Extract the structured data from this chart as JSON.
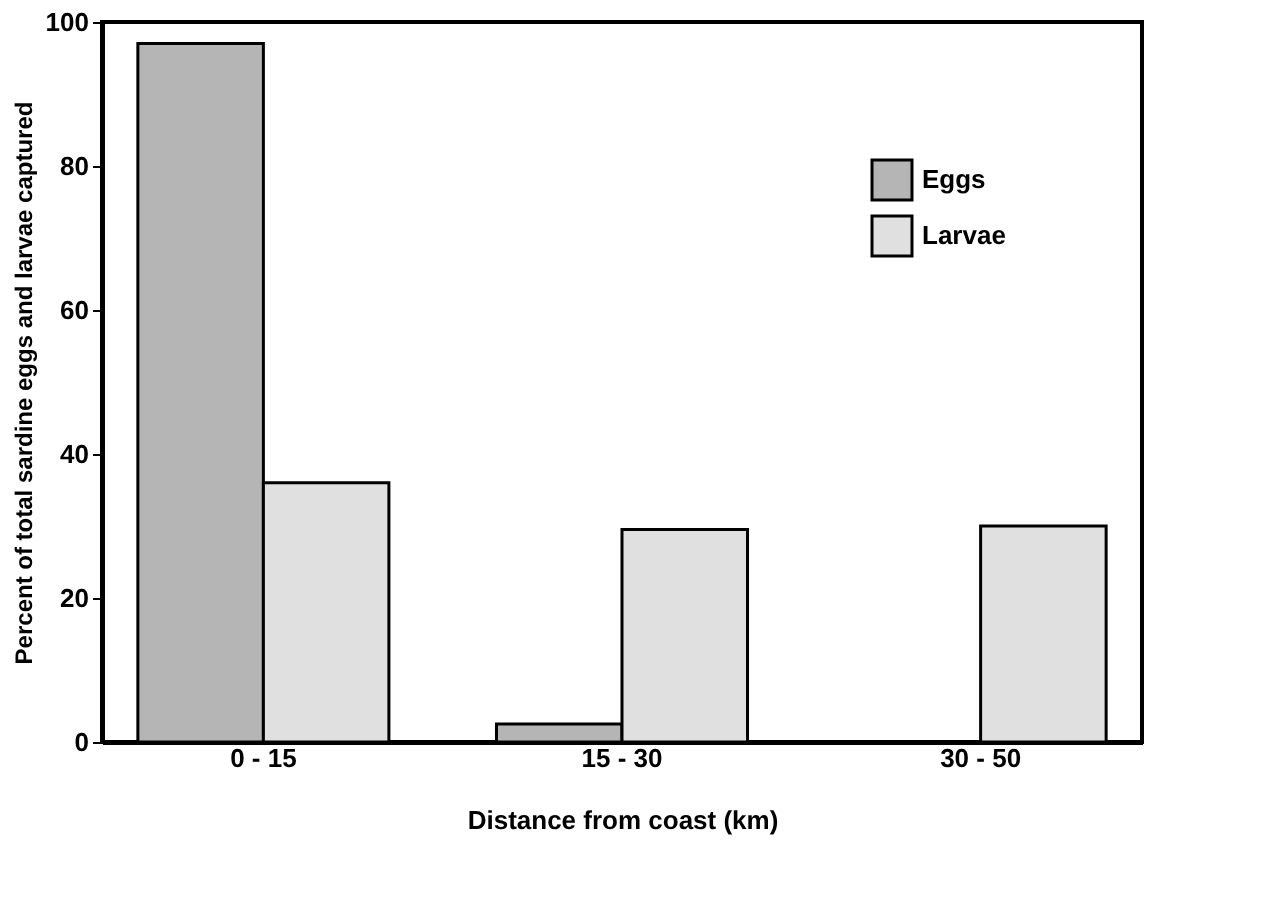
{
  "chart_data": {
    "type": "bar",
    "xlabel": "Distance from coast (km)",
    "ylabel": "Percent of total sardine eggs and larvae captured",
    "categories": [
      "0 - 15",
      "15 - 30",
      "30 - 50"
    ],
    "series": [
      {
        "name": "Eggs",
        "color": "#b5b5b5",
        "values": [
          97,
          2.5,
          null
        ]
      },
      {
        "name": "Larvae",
        "color": "#e0e0e0",
        "values": [
          36,
          29.5,
          30
        ]
      }
    ],
    "ylim": [
      0,
      100
    ],
    "yticks": [
      0,
      20,
      40,
      60,
      80,
      100
    ],
    "grid": false,
    "legend": "top right"
  }
}
